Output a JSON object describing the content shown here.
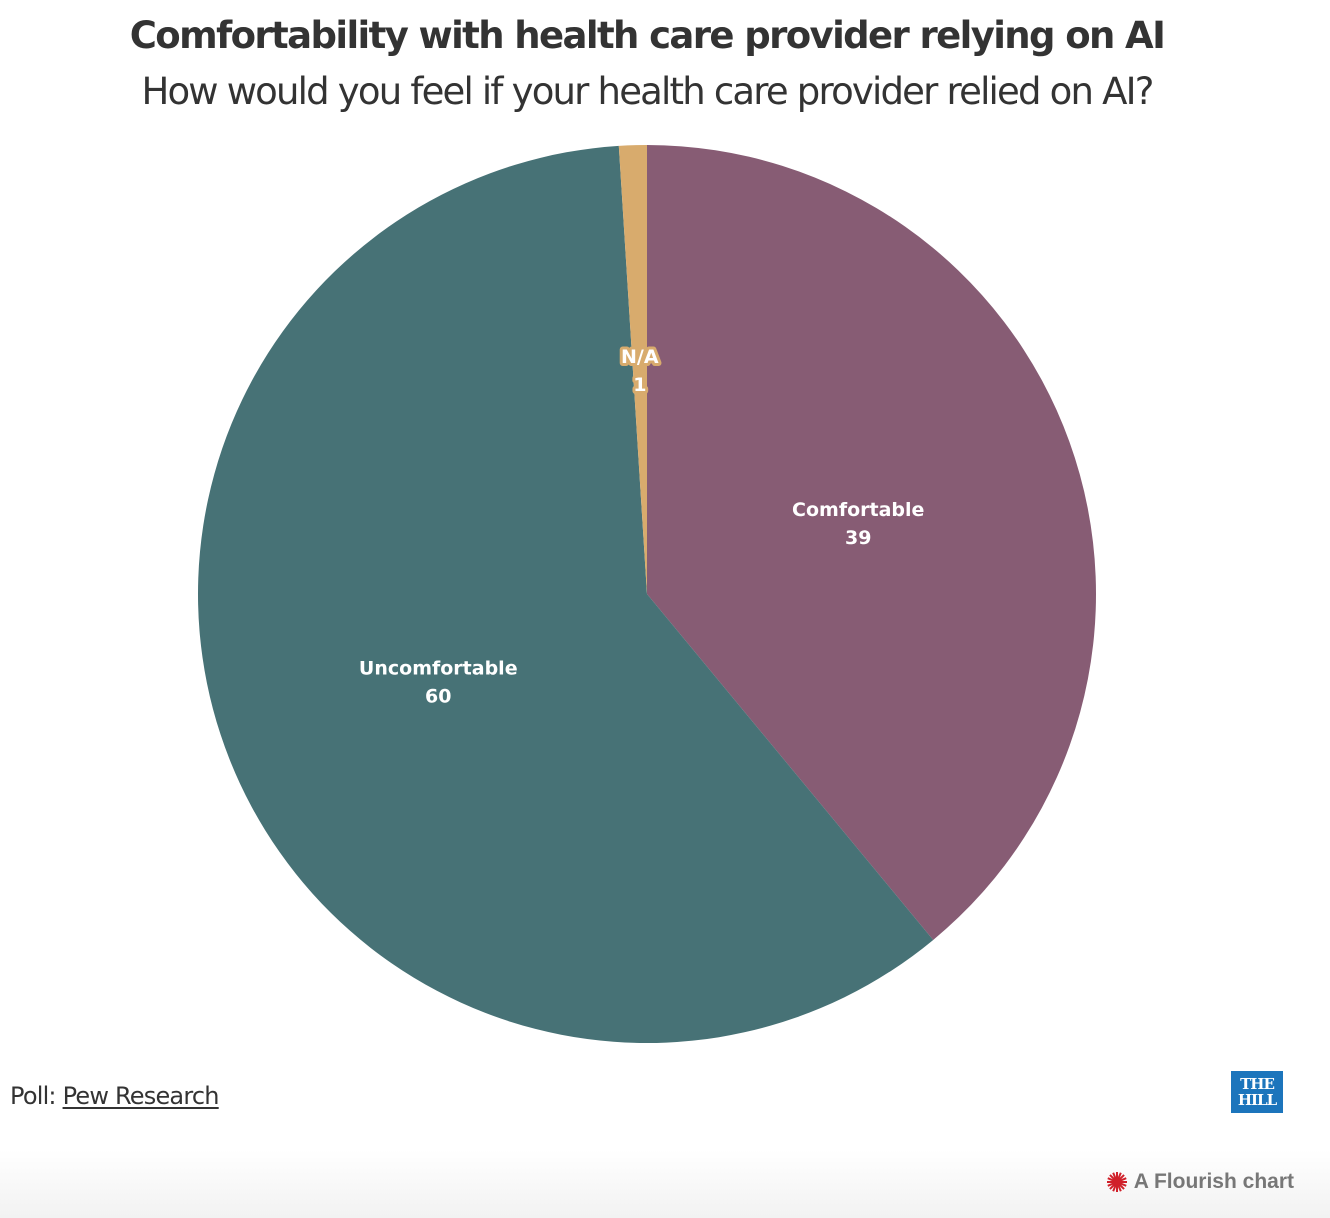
{
  "chart_data": {
    "type": "pie",
    "title": "Comfortability with health care provider relying on AI",
    "subtitle": "How would you feel if your health care provider relied on AI?",
    "start_angle": "top, clockwise",
    "slices": [
      {
        "label": "Comfortable",
        "value": 39,
        "color": "#875c74"
      },
      {
        "label": "Uncomfortable",
        "value": 60,
        "color": "#477276"
      },
      {
        "label": "N/A",
        "value": 1,
        "color": "#d8ab6d"
      }
    ]
  },
  "footer": {
    "source_prefix": "Poll: ",
    "source_link": "Pew Research",
    "logo_line1": "THE",
    "logo_line2": "HILL",
    "flourish_label": "A Flourish chart",
    "flourish_icon_color": "#d0202a"
  }
}
